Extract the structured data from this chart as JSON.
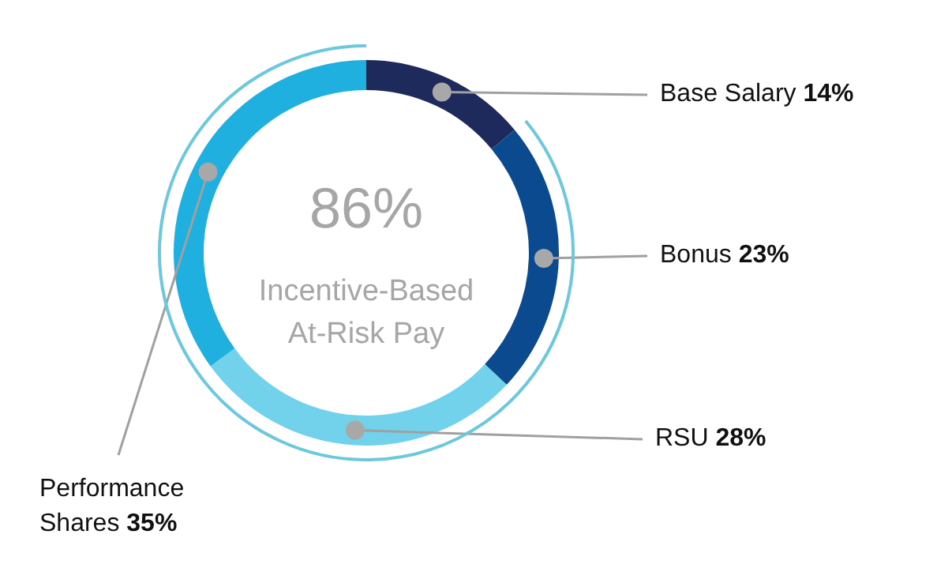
{
  "chart_data": {
    "type": "donut",
    "categories": [
      "Base Salary",
      "Bonus",
      "RSU",
      "Performance Shares"
    ],
    "values": [
      14,
      23,
      28,
      35
    ],
    "colors": [
      "#1f2a5c",
      "#0b4a8e",
      "#72d2ec",
      "#1fb0e0"
    ],
    "value_labels": [
      "14%",
      "23%",
      "28%",
      "35%"
    ],
    "annotations": [
      "86%",
      "Incentive-Based At-Risk Pay"
    ]
  }
}
